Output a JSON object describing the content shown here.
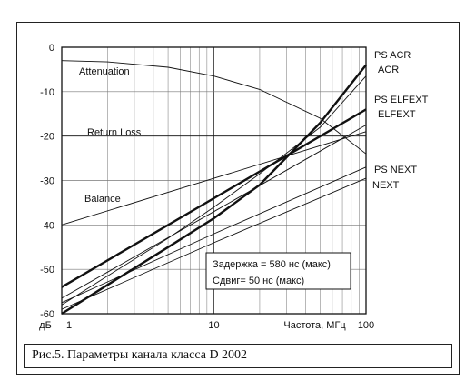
{
  "chart_data": {
    "type": "line",
    "title": "",
    "xlabel": "Частота, МГц",
    "ylabel": "дБ",
    "x_scale": "log",
    "xlim": [
      1,
      100
    ],
    "ylim": [
      -60,
      0
    ],
    "x_ticks": [
      1,
      10,
      100
    ],
    "y_ticks": [
      0,
      -10,
      -20,
      -30,
      -40,
      -50,
      -60
    ],
    "grid": true,
    "series": [
      {
        "name": "PS ACR",
        "style": "thick",
        "x": [
          1,
          2,
          5,
          10,
          20,
          50,
          100
        ],
        "y": [
          -60,
          -53.5,
          -45,
          -38.5,
          -31,
          -17,
          -4
        ]
      },
      {
        "name": "ACR",
        "style": "thin",
        "x": [
          1,
          2,
          5,
          10,
          20,
          50,
          100
        ],
        "y": [
          -58,
          -51.5,
          -43,
          -36,
          -28.5,
          -18,
          -6.5
        ]
      },
      {
        "name": "PS ELFEXT",
        "style": "thick",
        "x": [
          1,
          10,
          100
        ],
        "y": [
          -54,
          -34,
          -14
        ]
      },
      {
        "name": "ELFEXT",
        "style": "thin",
        "x": [
          1,
          10,
          100
        ],
        "y": [
          -56.5,
          -37,
          -17.5
        ]
      },
      {
        "name": "PS NEXT",
        "style": "thin",
        "x": [
          1,
          10,
          100
        ],
        "y": [
          -57.5,
          -42,
          -27
        ]
      },
      {
        "name": "NEXT",
        "style": "thin",
        "x": [
          1,
          10,
          100
        ],
        "y": [
          -59,
          -44,
          -29.5
        ]
      },
      {
        "name": "Attenuation",
        "style": "thin",
        "x": [
          1,
          2,
          5,
          10,
          20,
          50,
          100
        ],
        "y": [
          -3,
          -3.3,
          -4.5,
          -6.5,
          -9.5,
          -16,
          -24
        ]
      },
      {
        "name": "Return Loss",
        "style": "thin",
        "x": [
          1,
          10,
          100
        ],
        "y": [
          -20,
          -20,
          -20
        ]
      },
      {
        "name": "Balance",
        "style": "thin",
        "x": [
          1,
          10,
          100
        ],
        "y": [
          -40,
          -29.5,
          -19
        ]
      }
    ],
    "notes": [
      "Задержка = 580 нс (макс)",
      "Сдвиг= 50 нс (макс)"
    ]
  },
  "caption": "Рис.5. Параметры канала класса D 2002"
}
